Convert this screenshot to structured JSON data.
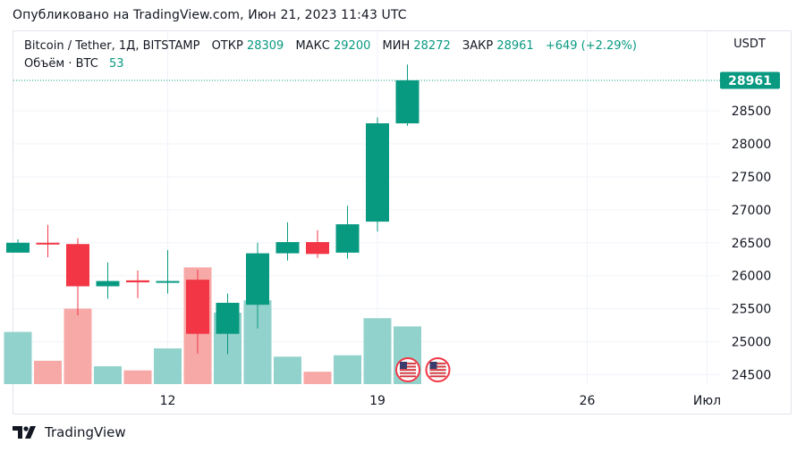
{
  "header": {
    "published": "Опубликовано на TradingView.com, Июн 21, 2023 11:43 UTC"
  },
  "legend": {
    "symbol": "Bitcoin / Tether, 1Д, BITSTAMP",
    "open_label": "ОТКР",
    "open_value": "28309",
    "high_label": "МАКС",
    "high_value": "29200",
    "low_label": "МИН",
    "low_value": "28272",
    "close_label": "ЗАКР",
    "close_value": "28961",
    "change": "+649 (+2.29%)",
    "volume_label": "Объём · BTC",
    "volume_value": "53"
  },
  "footer": {
    "brand": "TradingView"
  },
  "colors": {
    "up": "#089981",
    "down": "#f23645",
    "up_volume": "#92d2cc",
    "down_volume": "#f7a9a7",
    "grid": "#f0f3fa",
    "text": "#131722"
  },
  "chart_data": {
    "type": "candlestick",
    "currency": "USDT",
    "price_axis_ticks": [
      24500,
      25000,
      25500,
      26000,
      26500,
      27000,
      27500,
      28000,
      28500
    ],
    "last_price_label": "28961",
    "last_price": 28961,
    "ylim": [
      24350,
      29600
    ],
    "x_ticks": [
      {
        "label": "12",
        "day": 12
      },
      {
        "label": "19",
        "day": 19
      },
      {
        "label": "26",
        "day": 26
      },
      {
        "label": "Июл",
        "day": 30
      }
    ],
    "candles": [
      {
        "day": 7,
        "open": 26350,
        "high": 26550,
        "low": 26350,
        "close": 26500
      },
      {
        "day": 8,
        "open": 26500,
        "high": 26770,
        "low": 26280,
        "close": 26480
      },
      {
        "day": 9,
        "open": 26480,
        "high": 26570,
        "low": 25400,
        "close": 25840
      },
      {
        "day": 10,
        "open": 25840,
        "high": 26200,
        "low": 25650,
        "close": 25920
      },
      {
        "day": 11,
        "open": 25930,
        "high": 26080,
        "low": 25660,
        "close": 25900
      },
      {
        "day": 12,
        "open": 25900,
        "high": 26390,
        "low": 25730,
        "close": 25920
      },
      {
        "day": 13,
        "open": 25940,
        "high": 26090,
        "low": 24820,
        "close": 25120
      },
      {
        "day": 14,
        "open": 25120,
        "high": 25730,
        "low": 24810,
        "close": 25590
      },
      {
        "day": 15,
        "open": 25560,
        "high": 26500,
        "low": 25200,
        "close": 26340
      },
      {
        "day": 16,
        "open": 26340,
        "high": 26810,
        "low": 26230,
        "close": 26510
      },
      {
        "day": 17,
        "open": 26510,
        "high": 26690,
        "low": 26270,
        "close": 26330
      },
      {
        "day": 18,
        "open": 26350,
        "high": 27060,
        "low": 26260,
        "close": 26780
      },
      {
        "day": 19,
        "open": 26820,
        "high": 28400,
        "low": 26670,
        "close": 28310
      },
      {
        "day": 20,
        "open": 28309,
        "high": 29200,
        "low": 28272,
        "close": 28961
      }
    ],
    "volume": [
      {
        "day": 7,
        "value": 0.38,
        "dir": "up"
      },
      {
        "day": 8,
        "value": 0.17,
        "dir": "down"
      },
      {
        "day": 9,
        "value": 0.55,
        "dir": "down"
      },
      {
        "day": 10,
        "value": 0.13,
        "dir": "up"
      },
      {
        "day": 11,
        "value": 0.1,
        "dir": "down"
      },
      {
        "day": 12,
        "value": 0.26,
        "dir": "up"
      },
      {
        "day": 13,
        "value": 0.85,
        "dir": "down"
      },
      {
        "day": 14,
        "value": 0.52,
        "dir": "up"
      },
      {
        "day": 15,
        "value": 0.61,
        "dir": "up"
      },
      {
        "day": 16,
        "value": 0.2,
        "dir": "up"
      },
      {
        "day": 17,
        "value": 0.09,
        "dir": "down"
      },
      {
        "day": 18,
        "value": 0.21,
        "dir": "up"
      },
      {
        "day": 19,
        "value": 0.48,
        "dir": "up"
      },
      {
        "day": 20,
        "value": 0.42,
        "dir": "up"
      }
    ],
    "event_markers": [
      {
        "day": 20,
        "icon": "us-flag-icon"
      },
      {
        "day": 21,
        "icon": "us-flag-icon"
      }
    ]
  }
}
